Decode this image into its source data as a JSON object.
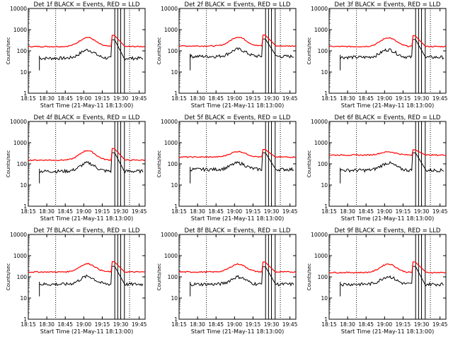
{
  "chart_data": {
    "type": "line",
    "layout": "3x3 grid",
    "y_scale": "log",
    "ylim": [
      1,
      10000
    ],
    "y_ticks": [
      "1",
      "10",
      "100",
      "1000",
      "10000"
    ],
    "ylabel": "Counts/sec",
    "x_range_minutes": [
      18.25,
      19.83
    ],
    "x_ticks": [
      "18:15",
      "18:30",
      "18:45",
      "19:00",
      "19:15",
      "19:30",
      "19:45"
    ],
    "xlabel": "Start Time (21-May-11 18:13:00)",
    "series_colors": {
      "events": "#000000",
      "lld": "#ff0000"
    },
    "panels": [
      {
        "title": "Det 1f BLACK = Events, RED = LLD",
        "events_base": 45,
        "lld_base": 160,
        "events_peak": 110,
        "lld_peak": 540
      },
      {
        "title": "Det 2f BLACK = Events, RED = LLD",
        "events_base": 55,
        "lld_base": 170,
        "events_peak": 120,
        "lld_peak": 560
      },
      {
        "title": "Det 3f BLACK = Events, RED = LLD",
        "events_base": 50,
        "lld_base": 160,
        "events_peak": 115,
        "lld_peak": 520
      },
      {
        "title": "Det 4f BLACK = Events, RED = LLD",
        "events_base": 45,
        "lld_base": 150,
        "events_peak": 110,
        "lld_peak": 530
      },
      {
        "title": "Det 5f BLACK = Events, RED = LLD",
        "events_base": 55,
        "lld_base": 210,
        "events_peak": 110,
        "lld_peak": 480
      },
      {
        "title": "Det 6f BLACK = Events, RED = LLD",
        "events_base": 50,
        "lld_base": 260,
        "events_peak": 110,
        "lld_peak": 460
      },
      {
        "title": "Det 7f BLACK = Events, RED = LLD",
        "events_base": 45,
        "lld_base": 170,
        "events_peak": 105,
        "lld_peak": 520
      },
      {
        "title": "Det 8f BLACK = Events, RED = LLD",
        "events_base": 45,
        "lld_base": 170,
        "events_peak": 100,
        "lld_peak": 500
      },
      {
        "title": "Det 9f BLACK = Events, RED = LLD",
        "events_base": 45,
        "lld_base": 160,
        "events_peak": 105,
        "lld_peak": 510
      }
    ]
  }
}
